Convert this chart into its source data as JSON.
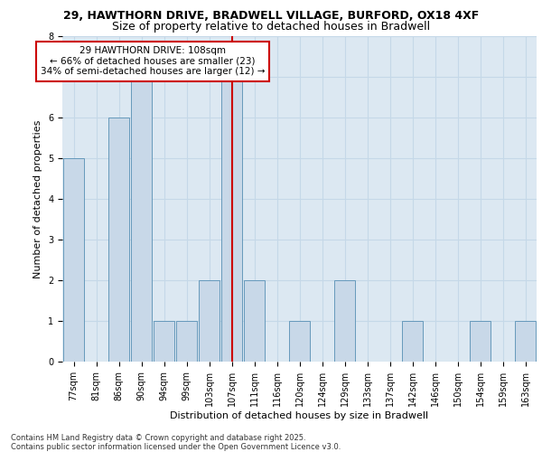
{
  "title_line1": "29, HAWTHORN DRIVE, BRADWELL VILLAGE, BURFORD, OX18 4XF",
  "title_line2": "Size of property relative to detached houses in Bradwell",
  "xlabel": "Distribution of detached houses by size in Bradwell",
  "ylabel": "Number of detached properties",
  "footer_line1": "Contains HM Land Registry data © Crown copyright and database right 2025.",
  "footer_line2": "Contains public sector information licensed under the Open Government Licence v3.0.",
  "annotation_line1": "29 HAWTHORN DRIVE: 108sqm",
  "annotation_line2": "← 66% of detached houses are smaller (23)",
  "annotation_line3": "34% of semi-detached houses are larger (12) →",
  "bins": [
    "77sqm",
    "81sqm",
    "86sqm",
    "90sqm",
    "94sqm",
    "99sqm",
    "103sqm",
    "107sqm",
    "111sqm",
    "116sqm",
    "120sqm",
    "124sqm",
    "129sqm",
    "133sqm",
    "137sqm",
    "142sqm",
    "146sqm",
    "150sqm",
    "154sqm",
    "159sqm",
    "163sqm"
  ],
  "values": [
    5,
    0,
    6,
    7,
    1,
    1,
    2,
    7,
    2,
    0,
    1,
    0,
    2,
    0,
    0,
    1,
    0,
    0,
    1,
    0,
    1
  ],
  "highlight_bin_index": 7,
  "bar_color": "#c8d8e8",
  "bar_edge_color": "#6699bb",
  "highlight_line_color": "#cc0000",
  "annotation_box_edge_color": "#cc0000",
  "grid_color": "#c5d8e8",
  "bg_color": "#dce8f2",
  "ylim": [
    0,
    8
  ],
  "yticks": [
    0,
    1,
    2,
    3,
    4,
    5,
    6,
    7,
    8
  ],
  "title_fontsize": 9,
  "subtitle_fontsize": 9,
  "ylabel_fontsize": 8,
  "xlabel_fontsize": 8,
  "tick_fontsize": 7,
  "footer_fontsize": 6,
  "annotation_fontsize": 7.5
}
